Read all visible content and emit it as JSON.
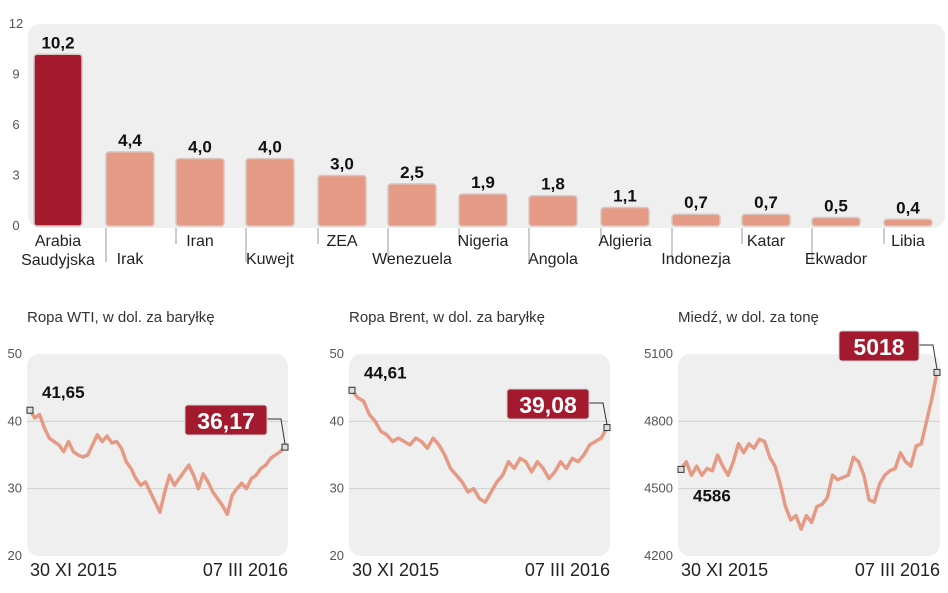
{
  "chart_data": [
    {
      "type": "bar",
      "ylim": [
        0,
        12
      ],
      "yticks": [
        0,
        3,
        6,
        9,
        12
      ],
      "categories": [
        "Arabia Saudyjska",
        "Irak",
        "Iran",
        "Kuwejt",
        "ZEA",
        "Wenezuela",
        "Nigeria",
        "Angola",
        "Algieria",
        "Indonezja",
        "Katar",
        "Ekwador",
        "Libia"
      ],
      "values": [
        10.2,
        4.4,
        4.0,
        4.0,
        3.0,
        2.5,
        1.9,
        1.8,
        1.1,
        0.7,
        0.7,
        0.5,
        0.4
      ],
      "labels": [
        "10,2",
        "4,4",
        "4,0",
        "4,0",
        "3,0",
        "2,5",
        "1,9",
        "1,8",
        "1,1",
        "0,7",
        "0,7",
        "0,5",
        "0,4"
      ],
      "highlight_color": "#a3192e",
      "bar_color": "#e59a86"
    },
    {
      "type": "line",
      "title": "Ropa WTI, w dol. za baryłkę",
      "ylim": [
        20,
        50
      ],
      "yticks": [
        20,
        30,
        40,
        50
      ],
      "x_labels": [
        "30 XI 2015",
        "07 III 2016"
      ],
      "start_label": "41,65",
      "end_label": "36,17",
      "values": [
        41.65,
        40.5,
        41,
        39,
        37.5,
        37,
        36.5,
        35.5,
        37,
        35.5,
        35,
        34.7,
        35,
        36.5,
        38,
        37,
        37.8,
        36.8,
        37,
        36,
        34,
        33,
        31.5,
        30.5,
        31,
        29.5,
        28,
        26.5,
        29.5,
        32,
        30.5,
        31.5,
        32.5,
        33.5,
        32,
        30,
        32.2,
        31,
        29.5,
        28.5,
        27.5,
        26.2,
        29,
        30,
        30.8,
        30,
        31.5,
        32,
        33,
        33.5,
        34.5,
        35,
        35.5,
        36.17
      ]
    },
    {
      "type": "line",
      "title": "Ropa Brent, w dol. za baryłkę",
      "ylim": [
        20,
        50
      ],
      "yticks": [
        20,
        30,
        40,
        50
      ],
      "x_labels": [
        "30 XI 2015",
        "07 III 2016"
      ],
      "start_label": "44,61",
      "end_label": "39,08",
      "values": [
        44.61,
        43.5,
        43,
        41,
        40,
        38.5,
        38,
        37,
        37.5,
        37,
        36.5,
        37.5,
        37,
        36,
        37.5,
        36.5,
        35,
        33,
        32,
        31,
        29.5,
        30,
        28.5,
        28,
        29.5,
        31,
        32,
        34,
        33,
        34.5,
        34,
        32.5,
        34,
        33,
        31.5,
        32.5,
        34,
        33,
        34.5,
        34,
        35,
        36.5,
        37,
        37.5,
        39.08
      ]
    },
    {
      "type": "line",
      "title": "Miedź, w dol. za tonę",
      "ylim": [
        4200,
        5100
      ],
      "yticks": [
        4200,
        4500,
        4800,
        5100
      ],
      "x_labels": [
        "30 XI 2015",
        "07 III 2016"
      ],
      "start_label": "4586",
      "end_label": "5018",
      "values": [
        4586,
        4620,
        4560,
        4600,
        4560,
        4590,
        4580,
        4650,
        4600,
        4560,
        4620,
        4700,
        4660,
        4700,
        4680,
        4720,
        4710,
        4640,
        4600,
        4520,
        4420,
        4360,
        4380,
        4320,
        4380,
        4350,
        4420,
        4430,
        4460,
        4560,
        4540,
        4550,
        4560,
        4640,
        4620,
        4560,
        4450,
        4440,
        4520,
        4560,
        4580,
        4590,
        4660,
        4620,
        4600,
        4690,
        4700,
        4800,
        4900,
        5018
      ]
    }
  ]
}
